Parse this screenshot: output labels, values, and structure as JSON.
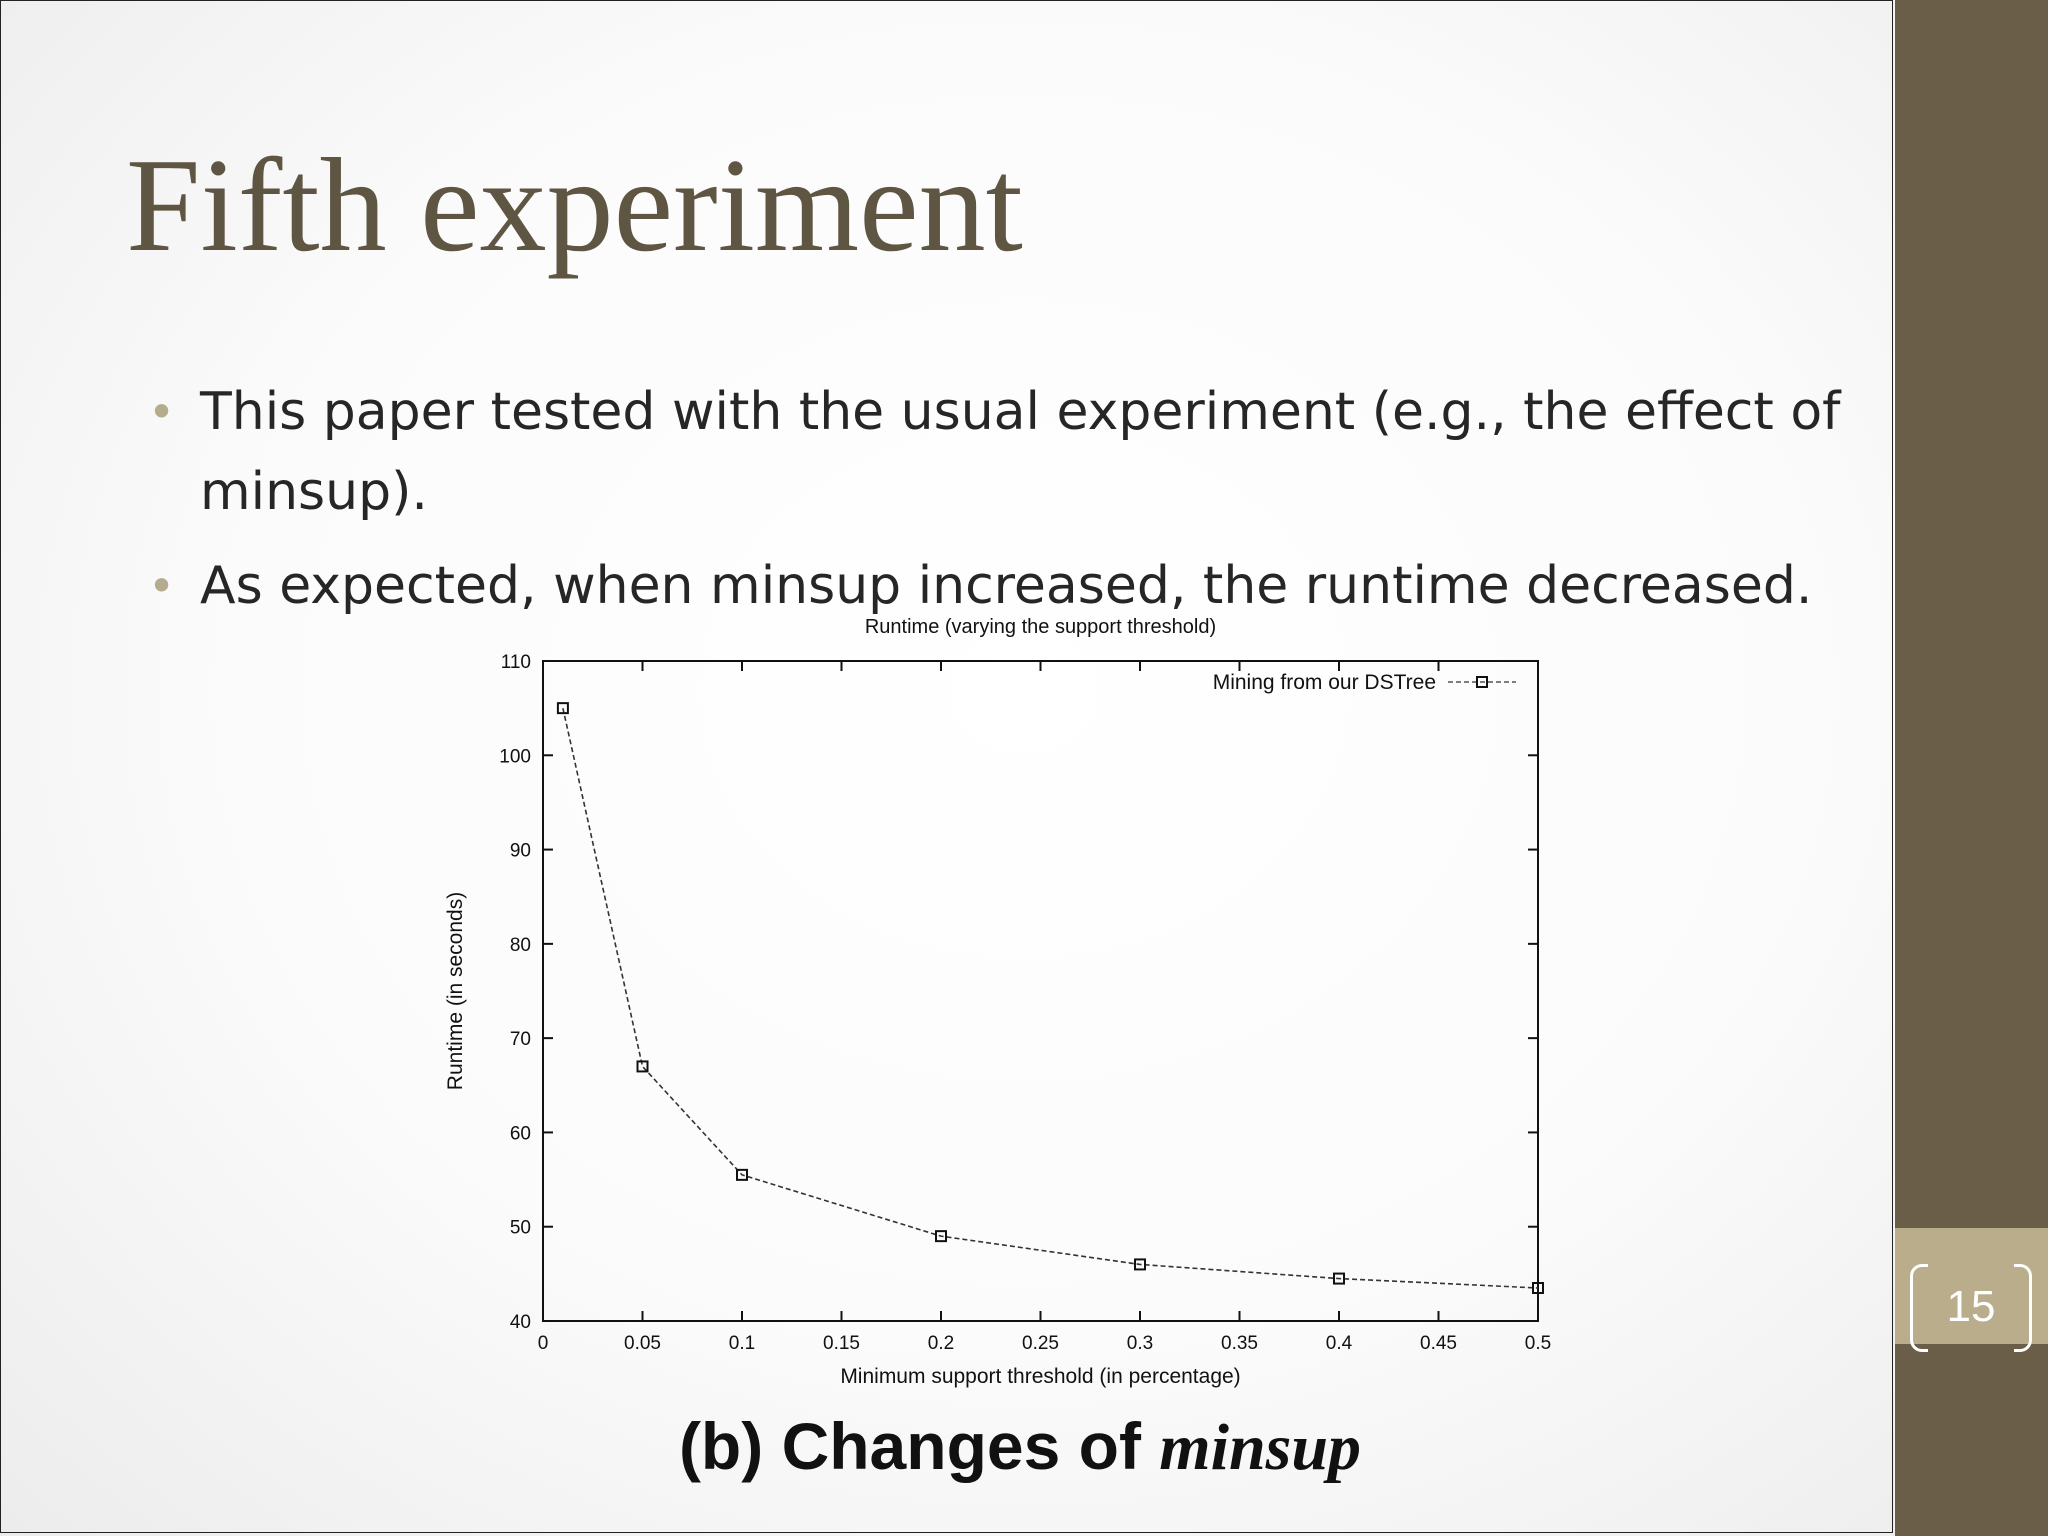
{
  "slide": {
    "title": "Fifth experiment",
    "bullets": [
      "This paper tested with the usual experiment (e.g., the effect of minsup).",
      "As expected, when minsup increased, the runtime decreased."
    ],
    "page_number": "15",
    "caption_prefix": "(b) Changes of ",
    "caption_italic": "minsup"
  },
  "colors": {
    "title": "#5e5542",
    "side_band": "#6b5e48",
    "page_tab": "#b9ad8c",
    "bullet": "#b5ac8e"
  },
  "chart_data": {
    "type": "line",
    "title": "Runtime (varying the support threshold)",
    "xlabel": "Minimum support threshold (in percentage)",
    "ylabel": "Runtime (in seconds)",
    "xlim": [
      0,
      0.5
    ],
    "ylim": [
      40,
      110
    ],
    "xticks": [
      "0",
      "0.05",
      "0.1",
      "0.15",
      "0.2",
      "0.25",
      "0.3",
      "0.35",
      "0.4",
      "0.45",
      "0.5"
    ],
    "yticks": [
      "40",
      "50",
      "60",
      "70",
      "80",
      "90",
      "100",
      "110"
    ],
    "legend_position": "top-right",
    "grid": false,
    "series": [
      {
        "name": "Mining from our DSTree",
        "marker": "square",
        "line_style": "dashed",
        "x": [
          0.01,
          0.05,
          0.1,
          0.2,
          0.3,
          0.4,
          0.5
        ],
        "y": [
          105,
          67,
          55.5,
          49,
          46,
          44.5,
          43.5
        ]
      }
    ]
  }
}
